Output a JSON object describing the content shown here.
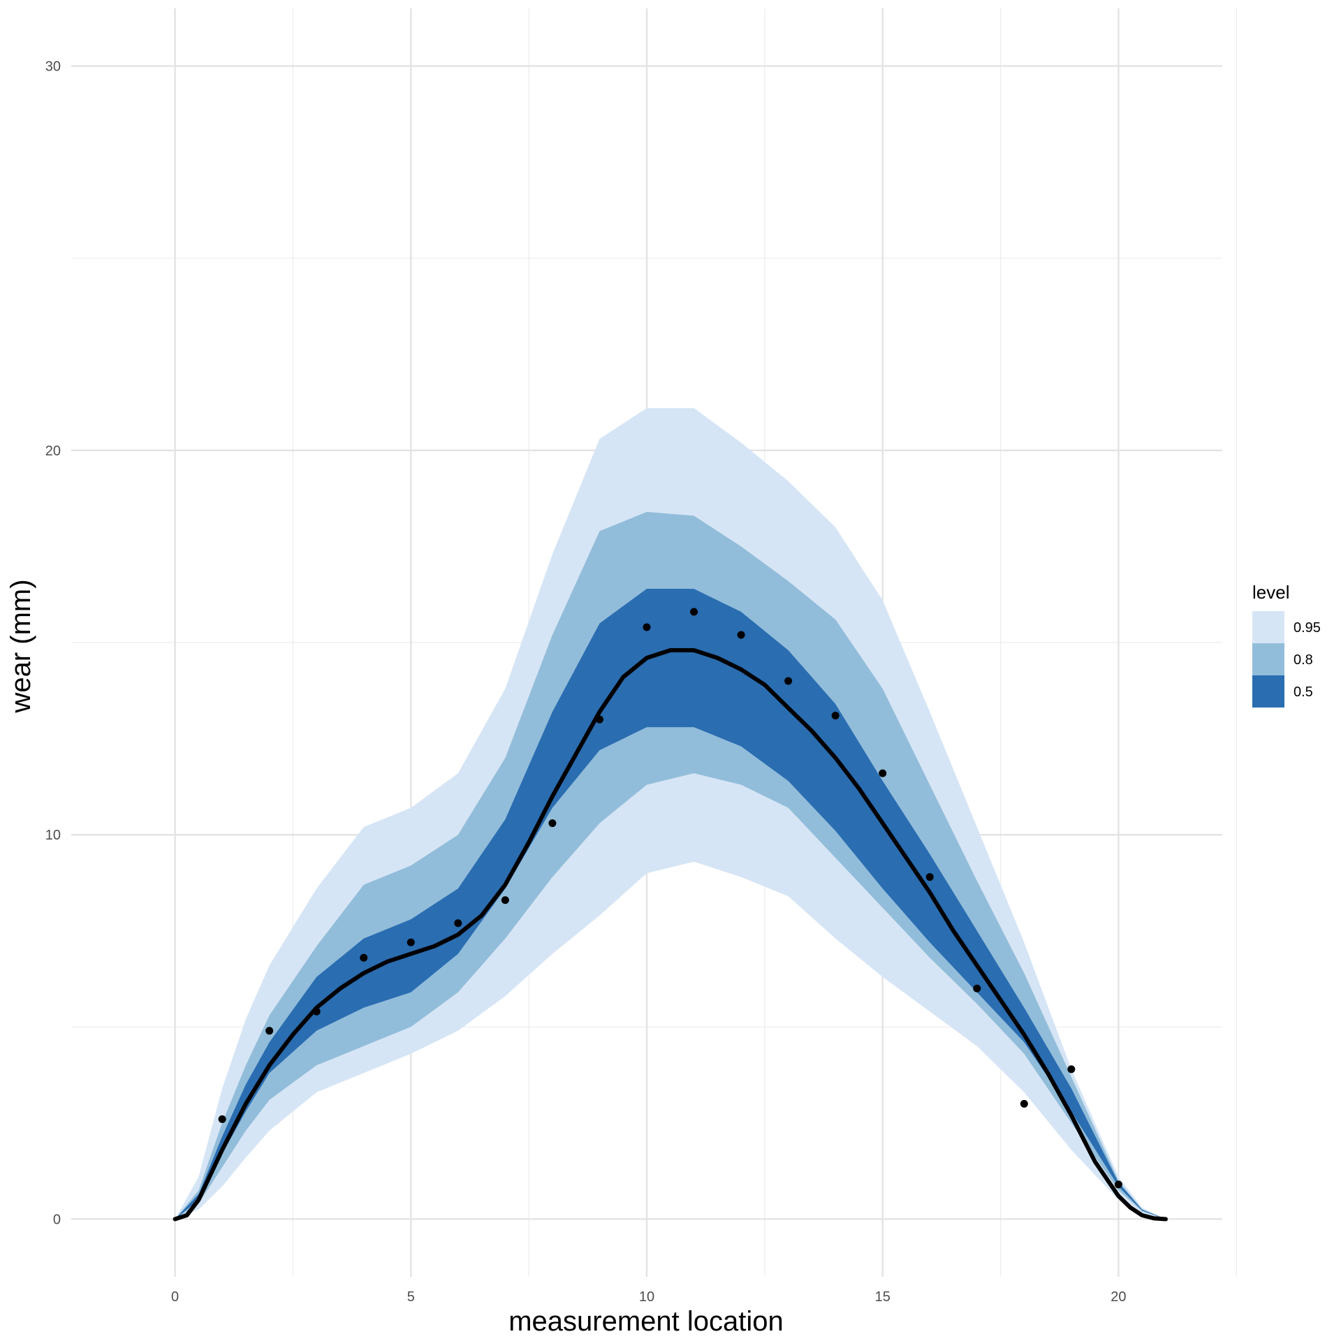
{
  "chart_data": {
    "type": "area",
    "xlabel": "measurement location",
    "ylabel": "wear (mm)",
    "xlim": [
      -2.2,
      22.2
    ],
    "ylim": [
      -1.5,
      31.5
    ],
    "x_ticks": [
      0,
      5,
      10,
      15,
      20
    ],
    "y_ticks": [
      0,
      10,
      20,
      30
    ],
    "grid": true,
    "legend": {
      "title": "level",
      "placement": "right",
      "entries": [
        {
          "label": "0.95",
          "color": "#d6e5f5"
        },
        {
          "label": "0.8",
          "color": "#92bdda"
        },
        {
          "label": "0.5",
          "color": "#2a6db1"
        }
      ]
    },
    "bands": {
      "x": [
        0,
        0.5,
        1,
        1.5,
        2,
        3,
        4,
        5,
        6,
        7,
        8,
        9,
        10,
        11,
        12,
        13,
        14,
        15,
        16,
        17,
        18,
        19,
        20,
        20.5,
        21
      ],
      "lower_95": [
        0,
        0.25,
        0.85,
        1.6,
        2.3,
        3.3,
        3.8,
        4.3,
        4.9,
        5.8,
        6.9,
        7.9,
        9.0,
        9.3,
        8.9,
        8.4,
        7.3,
        6.3,
        5.4,
        4.5,
        3.3,
        1.8,
        0.5,
        0.15,
        0
      ],
      "upper_95": [
        0,
        1.1,
        3.4,
        5.2,
        6.6,
        8.6,
        10.2,
        10.7,
        11.6,
        13.8,
        17.3,
        20.3,
        21.1,
        21.1,
        20.2,
        19.2,
        18.0,
        16.1,
        13.2,
        10.2,
        7.2,
        3.9,
        1.1,
        0.3,
        0
      ],
      "lower_80": [
        0,
        0.4,
        1.35,
        2.3,
        3.1,
        4.0,
        4.5,
        5.0,
        5.9,
        7.3,
        8.9,
        10.3,
        11.3,
        11.6,
        11.3,
        10.7,
        9.4,
        8.1,
        6.8,
        5.6,
        4.3,
        2.5,
        0.75,
        0.2,
        0
      ],
      "upper_80": [
        0,
        0.75,
        2.5,
        4.0,
        5.3,
        7.1,
        8.7,
        9.2,
        10.0,
        12.0,
        15.2,
        17.9,
        18.4,
        18.3,
        17.5,
        16.6,
        15.6,
        13.8,
        11.3,
        8.8,
        6.4,
        3.7,
        1.0,
        0.25,
        0
      ],
      "lower_50": [
        0,
        0.5,
        1.7,
        2.8,
        3.8,
        4.9,
        5.5,
        5.9,
        6.9,
        8.6,
        10.7,
        12.2,
        12.8,
        12.8,
        12.3,
        11.4,
        10.1,
        8.6,
        7.2,
        5.9,
        4.6,
        2.8,
        0.85,
        0.22,
        0
      ],
      "upper_50": [
        0,
        0.65,
        2.15,
        3.5,
        4.6,
        6.3,
        7.3,
        7.8,
        8.6,
        10.4,
        13.2,
        15.5,
        16.4,
        16.4,
        15.8,
        14.8,
        13.4,
        11.4,
        9.5,
        7.5,
        5.5,
        3.4,
        0.95,
        0.25,
        0
      ]
    },
    "median_line": {
      "x": [
        0,
        0.25,
        0.5,
        1,
        1.5,
        2,
        2.5,
        3,
        3.5,
        4,
        4.5,
        5,
        5.5,
        6,
        6.5,
        7,
        7.5,
        8,
        8.5,
        9,
        9.5,
        10,
        10.5,
        11,
        11.5,
        12,
        12.5,
        13,
        13.5,
        14,
        14.5,
        15,
        15.5,
        16,
        16.5,
        17,
        17.5,
        18,
        18.5,
        19,
        19.5,
        20,
        20.25,
        20.5,
        20.75,
        21
      ],
      "y": [
        0,
        0.1,
        0.5,
        1.8,
        3.0,
        4.0,
        4.8,
        5.5,
        6.0,
        6.4,
        6.7,
        6.9,
        7.1,
        7.4,
        7.9,
        8.7,
        9.8,
        11.0,
        12.1,
        13.2,
        14.1,
        14.6,
        14.8,
        14.8,
        14.6,
        14.3,
        13.9,
        13.3,
        12.7,
        12.0,
        11.2,
        10.3,
        9.4,
        8.5,
        7.5,
        6.6,
        5.7,
        4.8,
        3.8,
        2.7,
        1.5,
        0.6,
        0.3,
        0.1,
        0.02,
        0
      ],
      "color": "#000000"
    },
    "points": {
      "x": [
        1,
        2,
        3,
        4,
        5,
        6,
        7,
        8,
        9,
        10,
        11,
        12,
        13,
        14,
        15,
        16,
        17,
        18,
        19,
        20
      ],
      "y": [
        2.6,
        4.9,
        5.4,
        6.8,
        7.2,
        7.7,
        8.3,
        10.3,
        13.0,
        15.4,
        15.8,
        15.2,
        14.0,
        13.1,
        11.6,
        8.9,
        6.0,
        3.0,
        3.9,
        0.9
      ],
      "color": "#000000"
    }
  }
}
